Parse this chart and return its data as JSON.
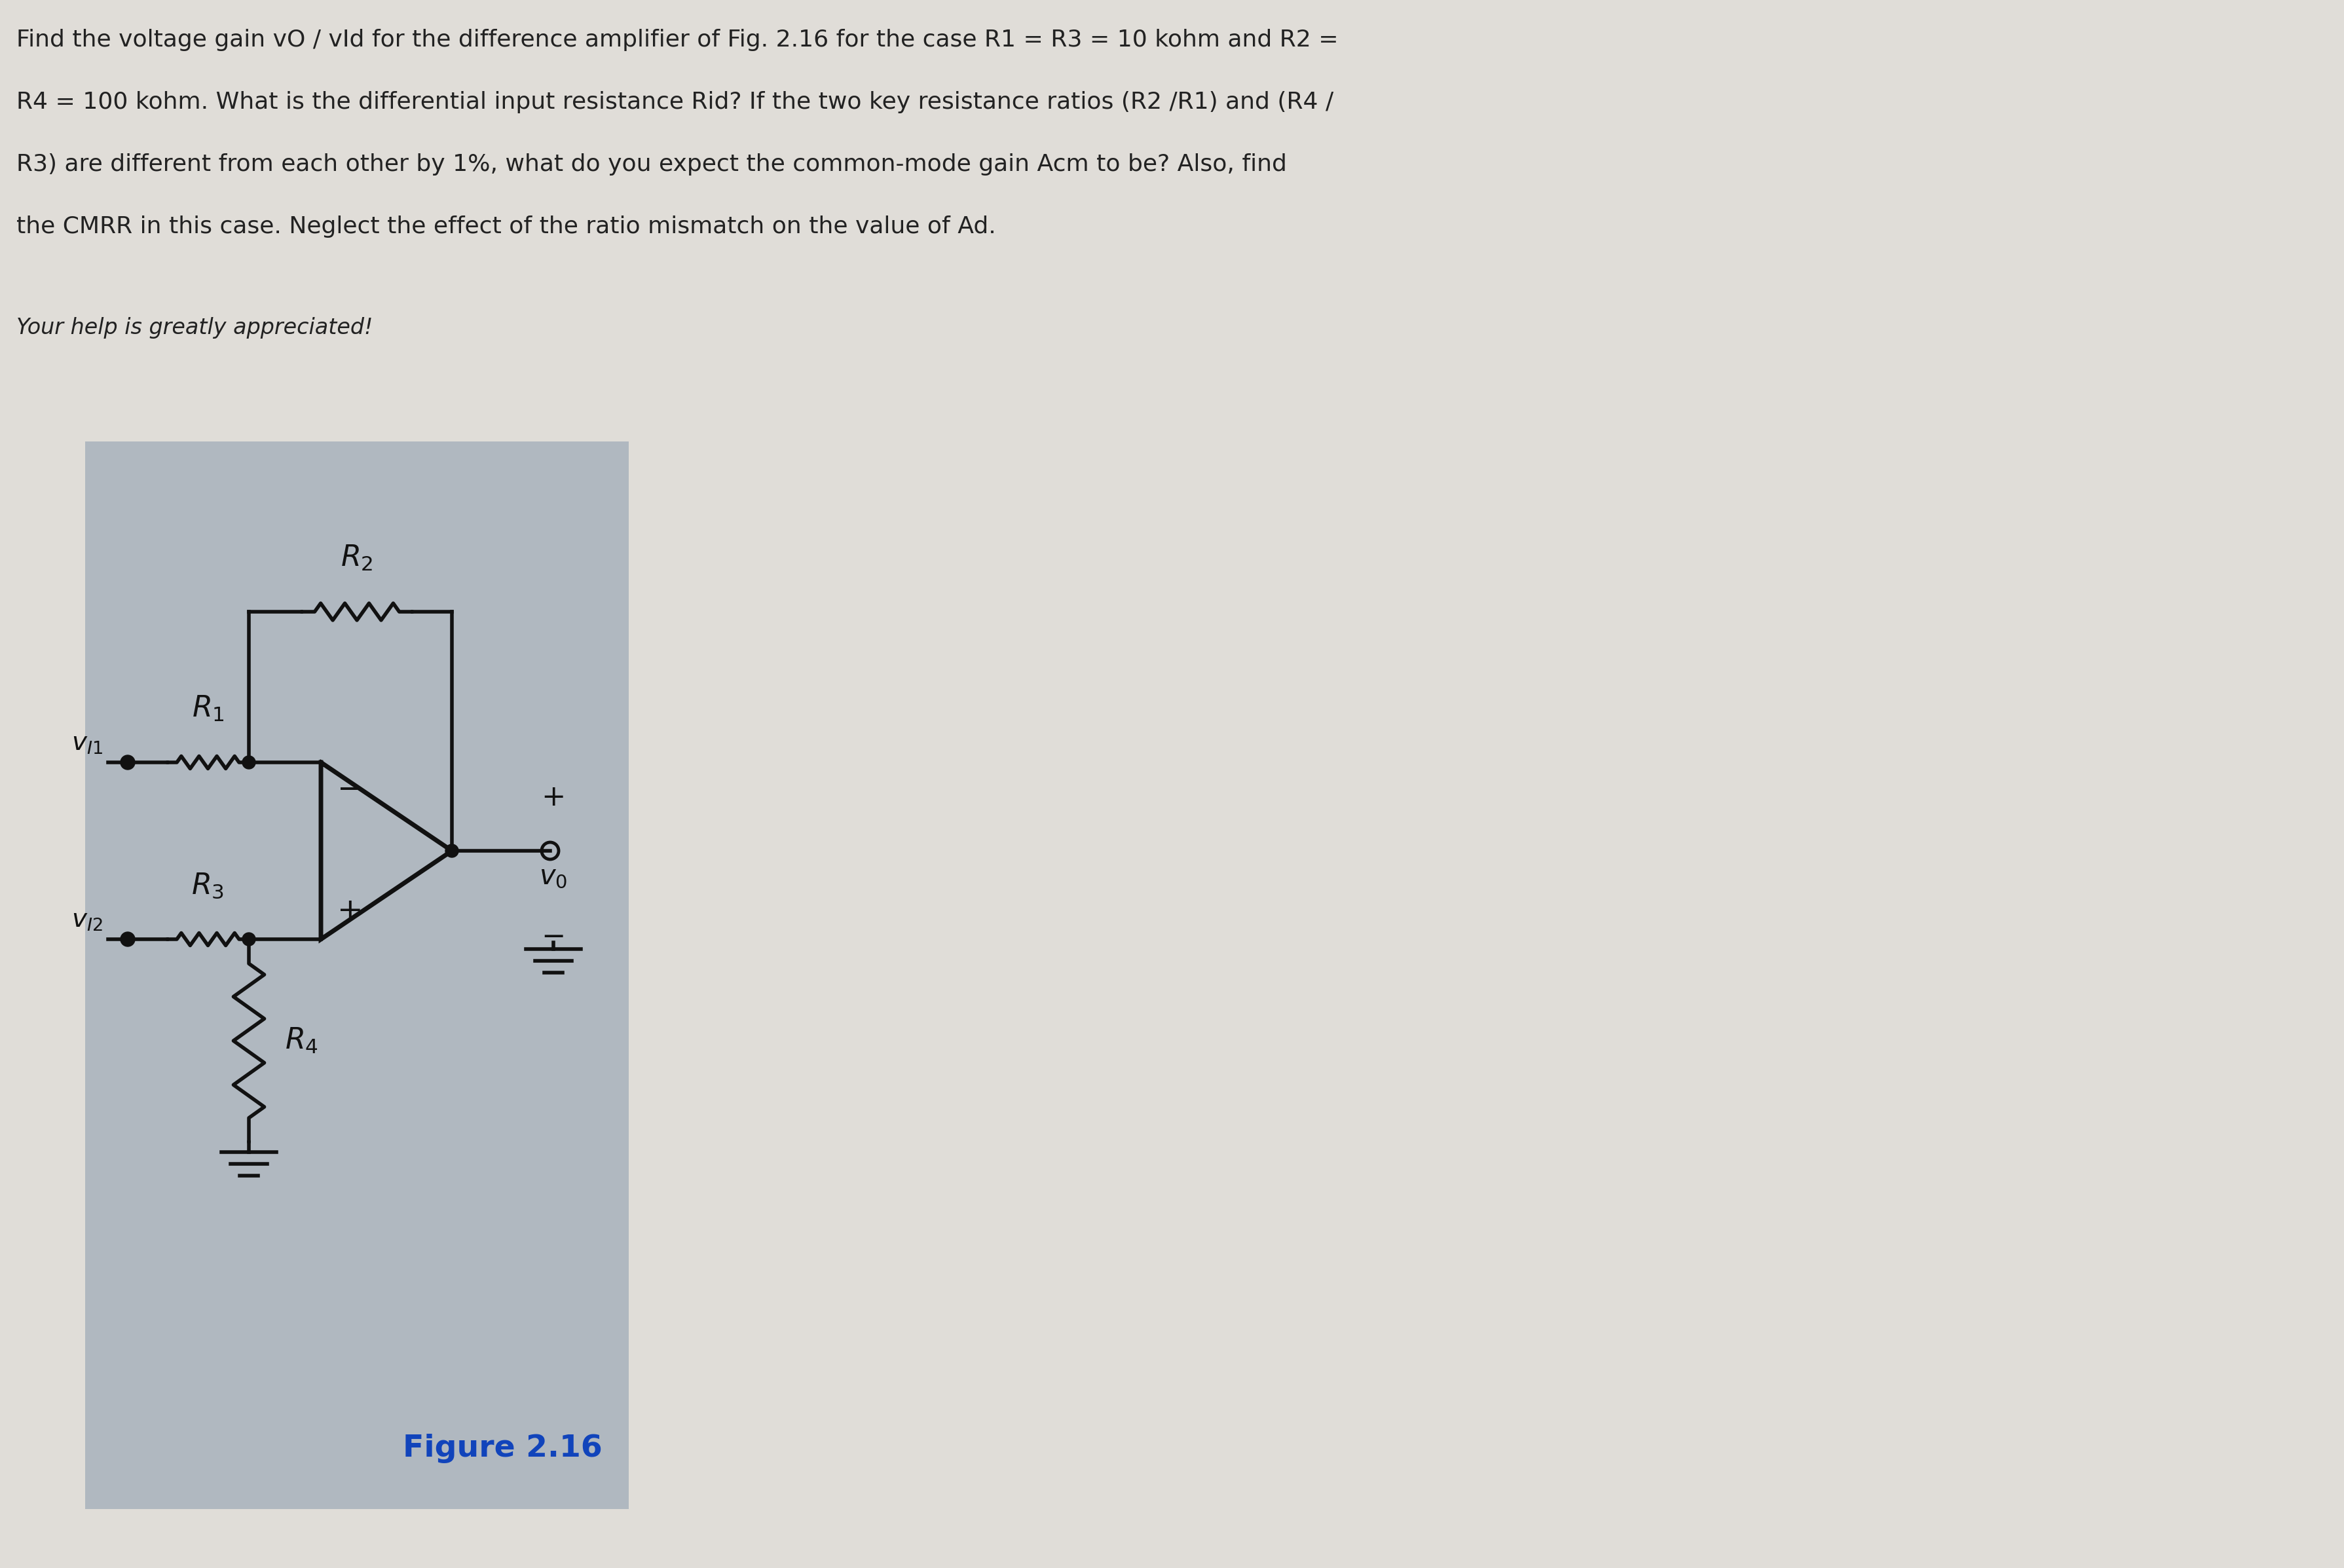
{
  "bg_color_top": "#e0ddd8",
  "circuit_bg": "#b0b8c0",
  "line_color": "#111111",
  "text_color": "#222222",
  "title_line1": "Find the voltage gain vO / vId for the difference amplifier of Fig. 2.16 for the case R1 = R3 = 10 kohm and R2 =",
  "title_line2": "R4 = 100 kohm. What is the differential input resistance Rid? If the two key resistance ratios (R2 /R1) and (R4 /",
  "title_line3": "R3) are different from each other by 1%, what do you expect the common-mode gain Acm to be? Also, find",
  "title_line4": "the CMRR in this case. Neglect the effect of the ratio mismatch on the value of Ad.",
  "subtitle": "Your help is greatly appreciated!",
  "figure_label": "Figure 2.16",
  "figure_label_color": "#1144bb",
  "font_title": 26,
  "font_subtitle": 24,
  "font_label": 28,
  "font_figure": 32
}
